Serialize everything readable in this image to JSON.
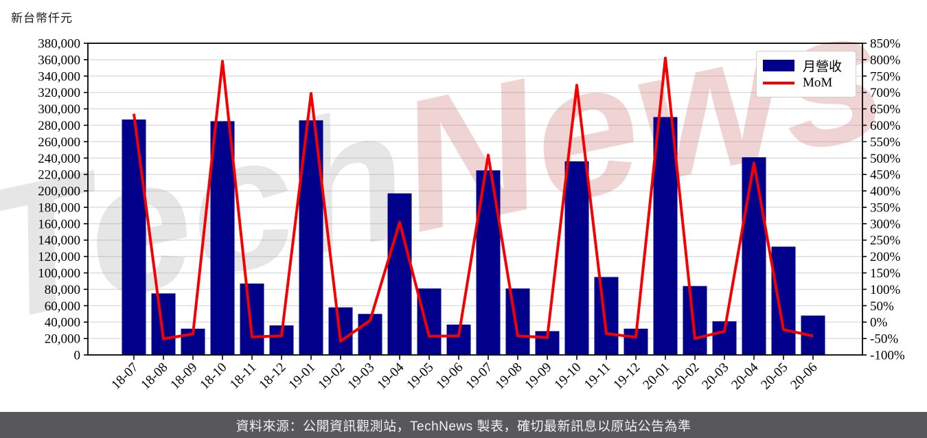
{
  "page": {
    "unit_label": "新台幣仟元"
  },
  "legend": {
    "revenue_label": "月營收",
    "mom_label": "MoM"
  },
  "watermark": {
    "part1": "Tech",
    "part2": "News"
  },
  "footer": {
    "text": "資料來源：公開資訊觀測站，TechNews 製表，確切最新訊息以原站公告為準"
  },
  "colors": {
    "bar": "#00008B",
    "line": "#F40000",
    "grid": "#DCDCDC",
    "spine": "#000000",
    "tick_label": "#000000",
    "footer_bg": "#58585B",
    "footer_text": "#F2F2F2",
    "watermark_gray": "#999999",
    "watermark_pink": "#CC6666",
    "legend_border": "#CCCCCC"
  },
  "chart_data": {
    "type": "bar",
    "subtype": "dual-axis bar + line",
    "title": "",
    "unit_label": "新台幣仟元",
    "categories": [
      "18-07",
      "18-08",
      "18-09",
      "18-10",
      "18-11",
      "18-12",
      "19-01",
      "19-02",
      "19-03",
      "19-04",
      "19-05",
      "19-06",
      "19-07",
      "19-08",
      "19-09",
      "19-10",
      "19-11",
      "19-12",
      "20-01",
      "20-02",
      "20-03",
      "20-04",
      "20-05",
      "20-06"
    ],
    "series": [
      {
        "name": "月營收",
        "type": "bar",
        "axis": "left",
        "values": [
          287000,
          75000,
          32000,
          285000,
          87000,
          36000,
          286000,
          58000,
          50000,
          197000,
          81000,
          37000,
          225000,
          81000,
          29000,
          236000,
          95000,
          32000,
          290000,
          84000,
          41000,
          241000,
          132000,
          48000
        ]
      },
      {
        "name": "MoM",
        "type": "line",
        "axis": "right",
        "values": [
          635,
          -51,
          -36,
          795,
          -45,
          -42,
          697,
          -58,
          5,
          304,
          -43,
          -42,
          509,
          -42,
          -47,
          722,
          -35,
          -46,
          805,
          -50,
          -28,
          485,
          -23,
          -42
        ]
      }
    ],
    "left_axis": {
      "min": 0,
      "max": 380000,
      "step": 20000,
      "format": "thousands-comma"
    },
    "right_axis": {
      "min": -100,
      "max": 850,
      "step": 50,
      "unit": "%"
    },
    "grid": true,
    "legend_position": "top-right",
    "x_tick_rotation": 45
  }
}
